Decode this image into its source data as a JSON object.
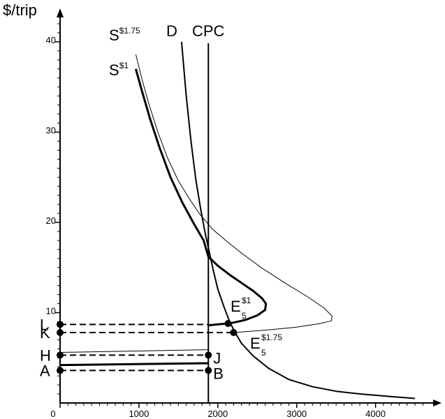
{
  "chart_data": {
    "type": "line",
    "ylabel": "$/trip",
    "xlabel": "",
    "xlim": [
      0,
      4700
    ],
    "ylim": [
      0,
      43
    ],
    "x_ticks": [
      0,
      1000,
      2000,
      3000,
      4000
    ],
    "y_ticks": [
      10,
      20,
      30,
      40
    ],
    "x_tick_labels": [
      "0",
      "1000",
      "2000",
      "3000",
      "4000"
    ],
    "y_tick_labels": [
      "10",
      "20",
      "30",
      "40"
    ],
    "grid": false,
    "series": [
      {
        "name": "S$1.75",
        "label_main": "S",
        "label_sup": "$1.75",
        "style": "thin",
        "points": [
          [
            960,
            38.6
          ],
          [
            1040,
            35.8
          ],
          [
            1130,
            33.0
          ],
          [
            1240,
            30.0
          ],
          [
            1360,
            27.2
          ],
          [
            1500,
            24.6
          ],
          [
            1640,
            22.6
          ],
          [
            1780,
            20.8
          ],
          [
            1940,
            19.2
          ],
          [
            2100,
            18.0
          ],
          [
            2300,
            16.6
          ],
          [
            2550,
            15.0
          ],
          [
            2850,
            13.3
          ],
          [
            3150,
            11.7
          ],
          [
            3350,
            10.5
          ],
          [
            3450,
            9.6
          ],
          [
            3440,
            9.1
          ],
          [
            3300,
            8.8
          ],
          [
            3000,
            8.4
          ],
          [
            2650,
            8.1
          ],
          [
            2350,
            7.9
          ],
          [
            2200,
            7.8
          ]
        ]
      },
      {
        "name": "S$1",
        "label_main": "S",
        "label_sup": "$1",
        "style": "thick",
        "points": [
          [
            960,
            37.0
          ],
          [
            1040,
            34.5
          ],
          [
            1140,
            31.5
          ],
          [
            1260,
            28.3
          ],
          [
            1400,
            25.0
          ],
          [
            1550,
            22.2
          ],
          [
            1700,
            19.8
          ],
          [
            1820,
            18.0
          ],
          [
            1880,
            16.2
          ],
          [
            2000,
            15.2
          ],
          [
            2150,
            14.2
          ],
          [
            2300,
            13.3
          ],
          [
            2450,
            12.4
          ],
          [
            2560,
            11.6
          ],
          [
            2610,
            11.0
          ],
          [
            2600,
            10.3
          ],
          [
            2500,
            9.7
          ],
          [
            2350,
            9.2
          ],
          [
            2200,
            8.9
          ],
          [
            2130,
            8.8
          ],
          [
            2000,
            8.7
          ],
          [
            1880,
            8.6
          ]
        ]
      },
      {
        "name": "D",
        "label_main": "D",
        "label_sup": "",
        "style": "medium",
        "points": [
          [
            1540,
            40.0
          ],
          [
            1600,
            34.0
          ],
          [
            1660,
            29.0
          ],
          [
            1720,
            24.8
          ],
          [
            1780,
            21.6
          ],
          [
            1840,
            18.8
          ],
          [
            1880,
            17.2
          ],
          [
            1940,
            14.8
          ],
          [
            2000,
            12.6
          ],
          [
            2080,
            10.6
          ],
          [
            2150,
            9.0
          ],
          [
            2220,
            7.8
          ],
          [
            2300,
            6.6
          ],
          [
            2450,
            5.2
          ],
          [
            2650,
            3.8
          ],
          [
            2900,
            2.6
          ],
          [
            3200,
            1.8
          ],
          [
            3500,
            1.3
          ],
          [
            3800,
            1.0
          ],
          [
            4200,
            0.7
          ],
          [
            4500,
            0.5
          ]
        ]
      }
    ],
    "cpc": {
      "label": "CPC",
      "x": 1880
    },
    "left_points": [
      {
        "label": "L",
        "y": 8.7,
        "style": "dashed",
        "line_to": 1880,
        "end_point": null,
        "end_label": ""
      },
      {
        "label": "K",
        "y": 7.8,
        "style": "dashed",
        "line_to": 2200,
        "end_point": null,
        "end_label": ""
      },
      {
        "label": "H",
        "y": 5.3,
        "style": "dashed",
        "line_to": 1880,
        "end_point": [
          1880,
          5.3
        ],
        "end_label": "J"
      },
      {
        "label": "A",
        "y": 3.6,
        "style": "dashed",
        "line_to": 1880,
        "end_point": [
          1880,
          3.6
        ],
        "end_label": "B"
      }
    ],
    "extra_lines": [
      {
        "from": [
          0,
          5.6
        ],
        "to": [
          1880,
          5.9
        ],
        "style": "thin"
      },
      {
        "from": [
          0,
          4.2
        ],
        "to": [
          1880,
          4.4
        ],
        "style": "thick"
      }
    ],
    "equilibria": [
      {
        "main": "E",
        "sub": "5",
        "sup": "$1",
        "point": [
          2130,
          8.8
        ]
      },
      {
        "main": "E",
        "sub": "5",
        "sup": "$1.75",
        "point": [
          2200,
          7.8
        ]
      }
    ],
    "colors": {
      "line": "#000000",
      "background": "#ffffff"
    }
  }
}
